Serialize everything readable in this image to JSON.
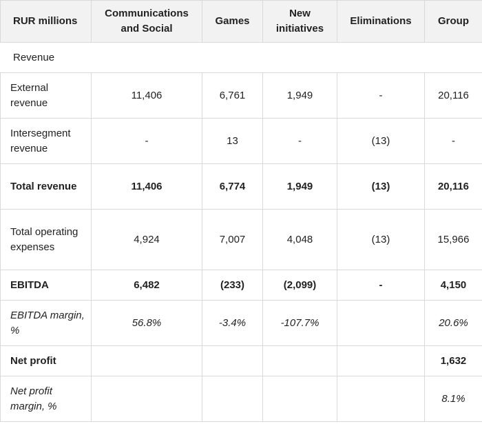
{
  "table": {
    "header": {
      "label": "RUR millions",
      "columns": [
        "Communications and Social",
        "Games",
        "New initiatives",
        "Eliminations",
        "Group"
      ]
    },
    "rows": [
      {
        "label": "Revenue",
        "values": [
          "",
          "",
          "",
          "",
          ""
        ]
      },
      {
        "label": "External revenue",
        "values": [
          "11,406",
          "6,761",
          "1,949",
          "-",
          "20,116"
        ]
      },
      {
        "label": "Intersegment revenue",
        "values": [
          "-",
          "13",
          "-",
          "(13)",
          "-"
        ]
      },
      {
        "label": "Total revenue",
        "values": [
          "11,406",
          "6,774",
          "1,949",
          "(13)",
          "20,116"
        ]
      },
      {
        "label": "Total operating expenses",
        "values": [
          "4,924",
          "7,007",
          "4,048",
          "(13)",
          "15,966"
        ]
      },
      {
        "label": "EBITDA",
        "values": [
          "6,482",
          "(233)",
          "(2,099)",
          "-",
          "4,150"
        ]
      },
      {
        "label": "EBITDA margin, %",
        "values": [
          "56.8%",
          "-3.4%",
          "-107.7%",
          "",
          "20.6%"
        ]
      },
      {
        "label": "Net profit",
        "values": [
          "",
          "",
          "",
          "",
          "1,632"
        ]
      },
      {
        "label": "Net profit margin, %",
        "values": [
          "",
          "",
          "",
          "",
          "8.1%"
        ]
      }
    ]
  }
}
